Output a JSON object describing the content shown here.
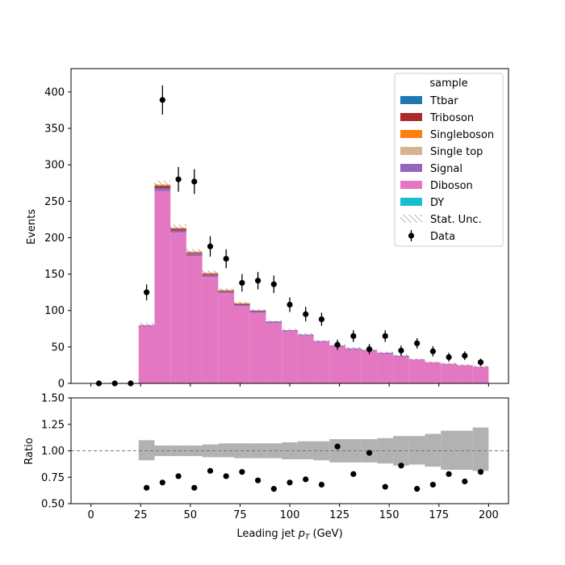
{
  "chart_data": [
    {
      "type": "bar",
      "stacked": true,
      "ylabel": "Events",
      "xlim": [
        -10,
        210
      ],
      "ylim": [
        0,
        432
      ],
      "yticks": [
        0,
        50,
        100,
        150,
        200,
        250,
        300,
        350,
        400
      ],
      "xticks": [
        0,
        25,
        50,
        75,
        100,
        125,
        150,
        175,
        200
      ],
      "bin_width": 8,
      "bin_low_edges": [
        0,
        8,
        16,
        24,
        32,
        40,
        48,
        56,
        64,
        72,
        80,
        88,
        96,
        104,
        112,
        120,
        128,
        136,
        144,
        152,
        160,
        168,
        176,
        184,
        192
      ],
      "series": [
        {
          "name": "Diboson",
          "color": "#e377c2",
          "values": [
            0,
            0,
            0,
            79,
            264,
            207,
            175,
            146,
            124,
            106,
            97,
            83,
            72,
            66,
            57,
            51,
            47,
            45,
            41,
            37,
            33,
            29,
            27,
            25,
            23
          ]
        },
        {
          "name": "Signal",
          "color": "#9467bd",
          "values": [
            0,
            0,
            0,
            1,
            4,
            3,
            3,
            3,
            2,
            2,
            2,
            2,
            1,
            1,
            1,
            1,
            1,
            1,
            1,
            1,
            0,
            0,
            0,
            0,
            0
          ]
        },
        {
          "name": "Triboson",
          "color": "#ab2b2b",
          "values": [
            0,
            0,
            0,
            0,
            3,
            2,
            1,
            1,
            1,
            1,
            1,
            0,
            0,
            0,
            0,
            0,
            0,
            0,
            0,
            0,
            0,
            0,
            0,
            0,
            0
          ]
        },
        {
          "name": "Singleboson",
          "color": "#ff7f0e",
          "values": [
            0,
            0,
            0,
            0,
            1,
            1,
            1,
            1,
            1,
            1,
            0,
            0,
            0,
            0,
            0,
            0,
            0,
            0,
            0,
            0,
            0,
            0,
            0,
            0,
            0
          ]
        },
        {
          "name": "Single top",
          "color": "#d6b48e",
          "values": [
            0,
            0,
            0,
            0,
            1,
            1,
            1,
            1,
            0,
            0,
            0,
            0,
            0,
            0,
            0,
            0,
            0,
            0,
            0,
            0,
            0,
            0,
            0,
            0,
            0
          ]
        },
        {
          "name": "Ttbar",
          "color": "#1f77b4",
          "values": [
            0,
            0,
            0,
            0,
            0,
            0,
            0,
            0,
            0,
            0,
            0,
            0,
            0,
            0,
            0,
            0,
            0,
            0,
            0,
            0,
            0,
            0,
            0,
            0,
            0
          ]
        },
        {
          "name": "DY",
          "color": "#17becf",
          "values": [
            0,
            0,
            0,
            0,
            0,
            0,
            0,
            0,
            0,
            0,
            0,
            0,
            0,
            0,
            0,
            0,
            0,
            0,
            0,
            0,
            0,
            0,
            0,
            0,
            0
          ]
        }
      ],
      "stat_unc_rel": [
        0,
        0,
        0,
        0.04,
        0.02,
        0.02,
        0.02,
        0.02,
        0.02,
        0.02,
        0.02,
        0.02,
        0.03,
        0.03,
        0.03,
        0.04,
        0.04,
        0.04,
        0.04,
        0.05,
        0.05,
        0.05,
        0.06,
        0.06,
        0.07
      ],
      "data": {
        "name": "Data",
        "x": [
          4,
          12,
          20,
          28,
          36,
          44,
          52,
          60,
          68,
          76,
          84,
          92,
          100,
          108,
          116,
          124,
          132,
          140,
          148,
          156,
          164,
          172,
          180,
          188,
          196
        ],
        "y": [
          0,
          0,
          0,
          125,
          389,
          280,
          277,
          188,
          171,
          138,
          141,
          136,
          108,
          95,
          88,
          53,
          65,
          47,
          65,
          45,
          55,
          44,
          36,
          38,
          29
        ],
        "err": [
          0,
          0,
          0,
          11,
          20,
          17,
          17,
          14,
          13,
          12,
          12,
          12,
          10,
          10,
          9,
          7,
          8,
          7,
          8,
          7,
          7,
          7,
          6,
          6,
          5
        ]
      },
      "legend": {
        "title": "sample",
        "placement": "top-right",
        "entries": [
          {
            "label": "Ttbar",
            "kind": "patch",
            "color": "#1f77b4"
          },
          {
            "label": "Triboson",
            "kind": "patch",
            "color": "#ab2b2b"
          },
          {
            "label": "Singleboson",
            "kind": "patch",
            "color": "#ff7f0e"
          },
          {
            "label": "Single top",
            "kind": "patch",
            "color": "#d6b48e"
          },
          {
            "label": "Signal",
            "kind": "patch",
            "color": "#9467bd"
          },
          {
            "label": "Diboson",
            "kind": "patch",
            "color": "#e377c2"
          },
          {
            "label": "DY",
            "kind": "patch",
            "color": "#17becf"
          },
          {
            "label": "Stat. Unc.",
            "kind": "hatch",
            "color": "#888888"
          },
          {
            "label": "Data",
            "kind": "errorbar",
            "color": "#000000"
          }
        ]
      }
    },
    {
      "type": "scatter",
      "xlabel": "Leading jet  p_T (GeV)",
      "xlabel_main": "Leading jet  ",
      "xlabel_math": "p",
      "xlabel_sub": "T",
      "xlabel_unit": " (GeV)",
      "ylabel": "Ratio",
      "xlim": [
        -10,
        210
      ],
      "ylim": [
        0.5,
        1.5
      ],
      "yticks": [
        "0.50",
        "0.75",
        "1.00",
        "1.25",
        "1.50"
      ],
      "ytick_values": [
        0.5,
        0.75,
        1.0,
        1.25,
        1.5
      ],
      "xticks": [
        "0",
        "25",
        "50",
        "75",
        "100",
        "125",
        "150",
        "175",
        "200"
      ],
      "xtick_values": [
        0,
        25,
        50,
        75,
        100,
        125,
        150,
        175,
        200
      ],
      "reference_line": 1.0,
      "unc_band": [
        {
          "x0": 24,
          "x1": 32,
          "lo": 0.91,
          "hi": 1.1
        },
        {
          "x0": 32,
          "x1": 40,
          "lo": 0.95,
          "hi": 1.05
        },
        {
          "x0": 40,
          "x1": 48,
          "lo": 0.95,
          "hi": 1.05
        },
        {
          "x0": 48,
          "x1": 56,
          "lo": 0.95,
          "hi": 1.05
        },
        {
          "x0": 56,
          "x1": 64,
          "lo": 0.94,
          "hi": 1.06
        },
        {
          "x0": 64,
          "x1": 72,
          "lo": 0.94,
          "hi": 1.07
        },
        {
          "x0": 72,
          "x1": 80,
          "lo": 0.93,
          "hi": 1.07
        },
        {
          "x0": 80,
          "x1": 88,
          "lo": 0.93,
          "hi": 1.07
        },
        {
          "x0": 88,
          "x1": 96,
          "lo": 0.93,
          "hi": 1.07
        },
        {
          "x0": 96,
          "x1": 104,
          "lo": 0.92,
          "hi": 1.08
        },
        {
          "x0": 104,
          "x1": 112,
          "lo": 0.92,
          "hi": 1.09
        },
        {
          "x0": 112,
          "x1": 120,
          "lo": 0.91,
          "hi": 1.09
        },
        {
          "x0": 120,
          "x1": 128,
          "lo": 0.89,
          "hi": 1.11
        },
        {
          "x0": 128,
          "x1": 136,
          "lo": 0.89,
          "hi": 1.11
        },
        {
          "x0": 136,
          "x1": 144,
          "lo": 0.89,
          "hi": 1.11
        },
        {
          "x0": 144,
          "x1": 152,
          "lo": 0.88,
          "hi": 1.12
        },
        {
          "x0": 152,
          "x1": 160,
          "lo": 0.86,
          "hi": 1.14
        },
        {
          "x0": 160,
          "x1": 168,
          "lo": 0.87,
          "hi": 1.14
        },
        {
          "x0": 168,
          "x1": 176,
          "lo": 0.85,
          "hi": 1.16
        },
        {
          "x0": 176,
          "x1": 184,
          "lo": 0.82,
          "hi": 1.19
        },
        {
          "x0": 184,
          "x1": 192,
          "lo": 0.82,
          "hi": 1.19
        },
        {
          "x0": 192,
          "x1": 200,
          "lo": 0.81,
          "hi": 1.22
        }
      ],
      "points": {
        "x": [
          28,
          36,
          44,
          52,
          60,
          68,
          76,
          84,
          92,
          100,
          108,
          116,
          124,
          132,
          140,
          148,
          156,
          164,
          172,
          180,
          188,
          196
        ],
        "y": [
          0.65,
          0.7,
          0.76,
          0.65,
          0.81,
          0.76,
          0.8,
          0.72,
          0.64,
          0.7,
          0.73,
          0.68,
          1.04,
          0.78,
          0.98,
          0.66,
          0.86,
          0.64,
          0.68,
          0.78,
          0.71,
          0.8
        ]
      }
    }
  ]
}
